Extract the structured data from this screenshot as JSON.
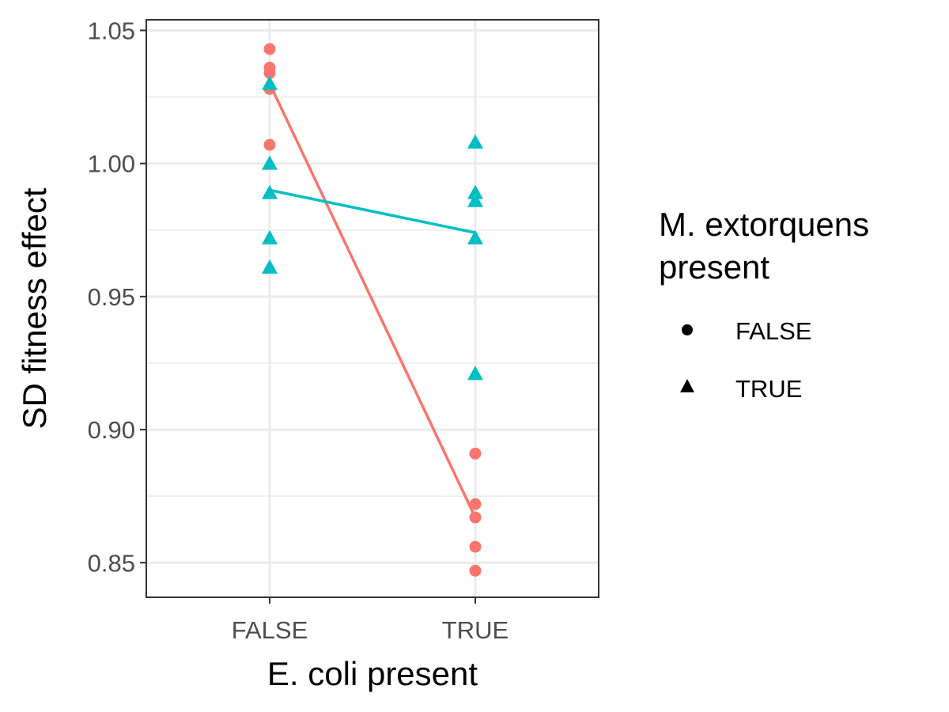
{
  "chart_data": {
    "type": "scatter",
    "xlabel": "E. coli present",
    "ylabel": "SD fitness effect",
    "categories": [
      "FALSE",
      "TRUE"
    ],
    "ylim": [
      0.837,
      1.054
    ],
    "y_major_ticks": [
      0.85,
      0.9,
      0.95,
      1.0,
      1.05
    ],
    "y_tick_labels": [
      "0.85",
      "0.90",
      "0.95",
      "1.00",
      "1.05"
    ],
    "legend": {
      "title_lines": [
        "M. extorquens",
        "present"
      ],
      "position": "right",
      "entries": [
        {
          "label": "FALSE",
          "shape": "circle"
        },
        {
          "label": "TRUE",
          "shape": "triangle"
        }
      ]
    },
    "series": [
      {
        "name": "FALSE",
        "shape": "circle",
        "color": "#F8766D",
        "points": [
          {
            "x": "FALSE",
            "y": 1.043
          },
          {
            "x": "FALSE",
            "y": 1.036
          },
          {
            "x": "FALSE",
            "y": 1.034
          },
          {
            "x": "FALSE",
            "y": 1.028
          },
          {
            "x": "FALSE",
            "y": 1.007
          },
          {
            "x": "TRUE",
            "y": 0.891
          },
          {
            "x": "TRUE",
            "y": 0.872
          },
          {
            "x": "TRUE",
            "y": 0.867
          },
          {
            "x": "TRUE",
            "y": 0.856
          },
          {
            "x": "TRUE",
            "y": 0.847
          }
        ],
        "mean_line": [
          {
            "x": "FALSE",
            "y": 1.03
          },
          {
            "x": "TRUE",
            "y": 0.867
          }
        ]
      },
      {
        "name": "TRUE",
        "shape": "triangle",
        "color": "#00BFC4",
        "points": [
          {
            "x": "FALSE",
            "y": 1.03
          },
          {
            "x": "FALSE",
            "y": 1.0
          },
          {
            "x": "FALSE",
            "y": 0.989
          },
          {
            "x": "FALSE",
            "y": 0.972
          },
          {
            "x": "FALSE",
            "y": 0.961
          },
          {
            "x": "TRUE",
            "y": 1.008
          },
          {
            "x": "TRUE",
            "y": 0.989
          },
          {
            "x": "TRUE",
            "y": 0.986
          },
          {
            "x": "TRUE",
            "y": 0.972
          },
          {
            "x": "TRUE",
            "y": 0.921
          }
        ],
        "mean_line": [
          {
            "x": "FALSE",
            "y": 0.99
          },
          {
            "x": "TRUE",
            "y": 0.974
          }
        ]
      }
    ]
  }
}
